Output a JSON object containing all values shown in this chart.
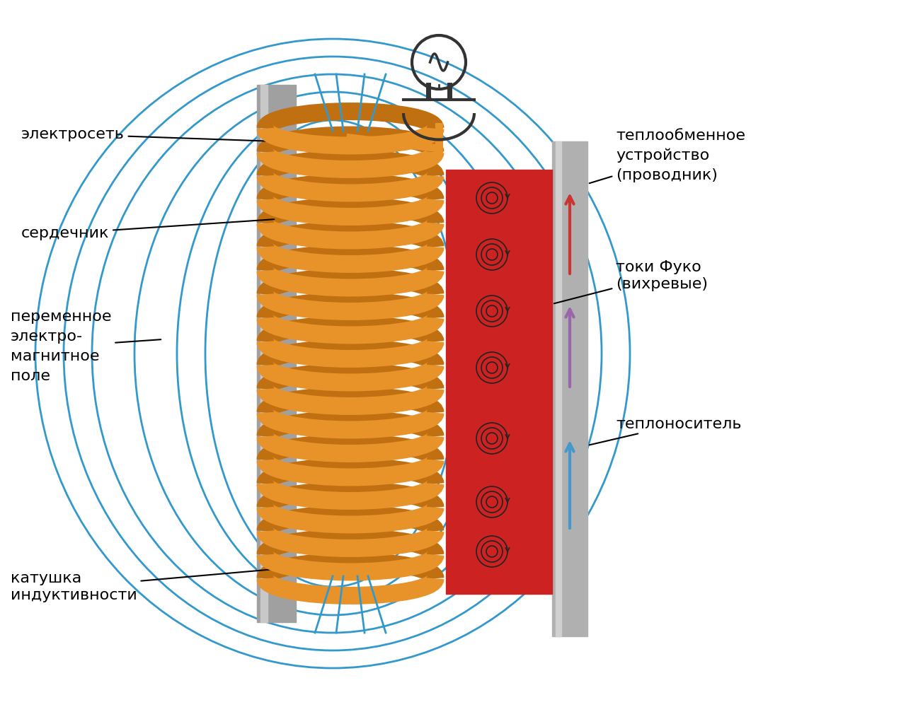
{
  "bg_color": "#ffffff",
  "coil_color": "#E8922A",
  "coil_shadow_color": "#C07010",
  "core_color": "#A0A0A0",
  "core_highlight": "#C8C8C8",
  "field_line_color": "#3399CC",
  "red_block_color": "#CC2222",
  "gray_pipe_color": "#B0B0B0",
  "arrow_red_color": "#CC3333",
  "arrow_purple_color": "#9966AA",
  "arrow_blue_color": "#4499CC",
  "eddy_color": "#222222",
  "plug_color": "#333333",
  "wire_color": "#E8922A",
  "label_color": "#000000",
  "label_fontsize": 16,
  "title": "",
  "labels": {
    "electroseti": "электросеть",
    "serdechnik": "сердечник",
    "pole": "переменное\nэлектро-\nмагнитное\nполе",
    "katushka": "катушка\nиндуктивности",
    "teplo_device": "теплообменное\nустройство\n(проводник)",
    "toki_fuko": "токи Фуко\n(вихревые)",
    "teplonositel": "теплоноситель"
  }
}
